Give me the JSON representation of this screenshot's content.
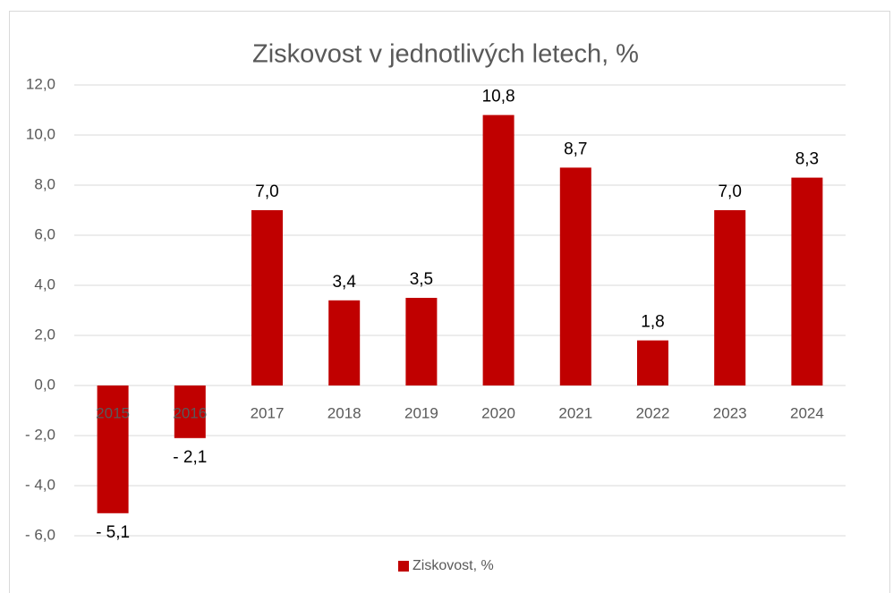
{
  "chart_data": {
    "type": "bar",
    "title": "Ziskovost v jednotlivých letech, %",
    "categories": [
      "2015",
      "2016",
      "2017",
      "2018",
      "2019",
      "2020",
      "2021",
      "2022",
      "2023",
      "2024"
    ],
    "series": [
      {
        "name": "Ziskovost, %",
        "color": "#c00000",
        "values": [
          -5.1,
          -2.1,
          7.0,
          3.4,
          3.5,
          10.8,
          8.7,
          1.8,
          7.0,
          8.3
        ],
        "value_labels": [
          "- 5,1",
          "- 2,1",
          "7,0",
          "3,4",
          "3,5",
          "10,8",
          "8,7",
          "1,8",
          "7,0",
          "8,3"
        ]
      }
    ],
    "ylim": [
      -6,
      12
    ],
    "yticks": [
      {
        "value": -6,
        "label": "- 6,0"
      },
      {
        "value": -4,
        "label": "- 4,0"
      },
      {
        "value": -2,
        "label": "- 2,0"
      },
      {
        "value": 0,
        "label": "0,0"
      },
      {
        "value": 2,
        "label": "2,0"
      },
      {
        "value": 4,
        "label": "4,0"
      },
      {
        "value": 6,
        "label": "6,0"
      },
      {
        "value": 8,
        "label": "8,0"
      },
      {
        "value": 10,
        "label": "10,0"
      },
      {
        "value": 12,
        "label": "12,0"
      }
    ],
    "grid": true,
    "legend": "bottom"
  }
}
